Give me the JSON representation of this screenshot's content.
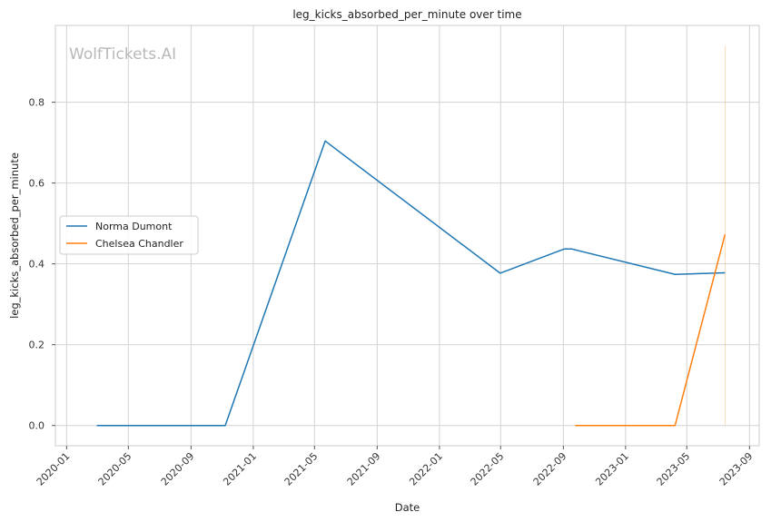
{
  "chart_data": {
    "type": "line",
    "title": "leg_kicks_absorbed_per_minute over time",
    "xlabel": "Date",
    "ylabel": "leg_kicks_absorbed_per_minute",
    "watermark": "WolfTickets.AI",
    "x_ticks": [
      "2020-01",
      "2020-05",
      "2020-09",
      "2021-01",
      "2021-05",
      "2021-09",
      "2022-01",
      "2022-05",
      "2022-09",
      "2023-01",
      "2023-05",
      "2023-09"
    ],
    "y_ticks": [
      "0.0",
      "0.2",
      "0.4",
      "0.6",
      "0.8"
    ],
    "xlim": [
      "2019-12-10",
      "2023-09-20"
    ],
    "ylim": [
      -0.05,
      0.99
    ],
    "grid": true,
    "legend_position": "center-left",
    "series": [
      {
        "name": "Norma Dumont",
        "color": "#1f77b4",
        "points": [
          {
            "x": "2020-02-29",
            "y": 0.0
          },
          {
            "x": "2020-11-07",
            "y": 0.0
          },
          {
            "x": "2021-05-22",
            "y": 0.704
          },
          {
            "x": "2022-04-30",
            "y": 0.377
          },
          {
            "x": "2022-09-03",
            "y": 0.437
          },
          {
            "x": "2022-09-17",
            "y": 0.437
          },
          {
            "x": "2023-04-08",
            "y": 0.374
          },
          {
            "x": "2023-07-15",
            "y": 0.378
          }
        ]
      },
      {
        "name": "Chelsea Chandler",
        "color": "#ff7f0e",
        "points": [
          {
            "x": "2022-09-24",
            "y": 0.0
          },
          {
            "x": "2023-04-08",
            "y": 0.0
          },
          {
            "x": "2023-07-15",
            "y": 0.473
          }
        ]
      }
    ],
    "annotations": [
      {
        "type": "vline",
        "x": "2023-07-15",
        "y_from": 0.0,
        "y_to": 0.94,
        "color": "#ff7f0e"
      }
    ]
  }
}
